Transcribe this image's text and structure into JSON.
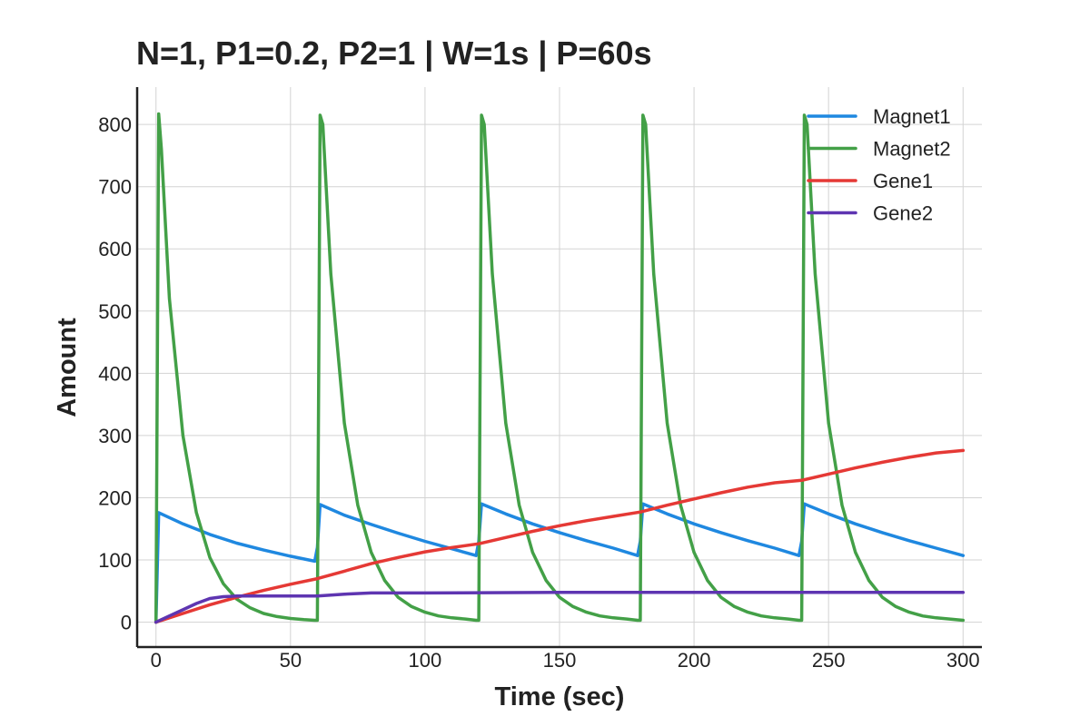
{
  "chart_data": {
    "type": "line",
    "title": "N=1, P1=0.2, P2=1 | W=1s | P=60s",
    "xlabel": "Time (sec)",
    "ylabel": "Amount",
    "xlim": [
      -7,
      307
    ],
    "ylim": [
      -40,
      860
    ],
    "xticks": [
      0,
      50,
      100,
      150,
      200,
      250,
      300
    ],
    "yticks": [
      0,
      100,
      200,
      300,
      400,
      500,
      600,
      700,
      800
    ],
    "grid": true,
    "legend_position": "top-right",
    "series": [
      {
        "name": "Magnet1",
        "color": "#1f88e0",
        "points": [
          [
            0,
            0
          ],
          [
            1,
            176
          ],
          [
            10,
            158
          ],
          [
            20,
            141
          ],
          [
            30,
            127
          ],
          [
            40,
            116
          ],
          [
            50,
            106
          ],
          [
            59,
            98
          ],
          [
            60,
            120
          ],
          [
            61,
            189
          ],
          [
            70,
            172
          ],
          [
            80,
            157
          ],
          [
            90,
            143
          ],
          [
            100,
            130
          ],
          [
            110,
            118
          ],
          [
            119,
            107
          ],
          [
            120,
            130
          ],
          [
            121,
            190
          ],
          [
            130,
            174
          ],
          [
            140,
            158
          ],
          [
            150,
            144
          ],
          [
            160,
            131
          ],
          [
            170,
            119
          ],
          [
            179,
            107
          ],
          [
            180,
            130
          ],
          [
            181,
            190
          ],
          [
            190,
            174
          ],
          [
            200,
            158
          ],
          [
            210,
            144
          ],
          [
            220,
            131
          ],
          [
            230,
            119
          ],
          [
            239,
            107
          ],
          [
            240,
            130
          ],
          [
            241,
            190
          ],
          [
            250,
            174
          ],
          [
            260,
            158
          ],
          [
            270,
            144
          ],
          [
            280,
            131
          ],
          [
            290,
            119
          ],
          [
            300,
            107
          ]
        ]
      },
      {
        "name": "Magnet2",
        "color": "#43a047",
        "points": [
          [
            0,
            0
          ],
          [
            1,
            817
          ],
          [
            2,
            760
          ],
          [
            5,
            520
          ],
          [
            10,
            300
          ],
          [
            15,
            176
          ],
          [
            20,
            104
          ],
          [
            25,
            62
          ],
          [
            30,
            37
          ],
          [
            35,
            23
          ],
          [
            40,
            14
          ],
          [
            45,
            9
          ],
          [
            50,
            6
          ],
          [
            55,
            4
          ],
          [
            59,
            3
          ],
          [
            60,
            3
          ],
          [
            61,
            815
          ],
          [
            62,
            800
          ],
          [
            65,
            560
          ],
          [
            70,
            320
          ],
          [
            75,
            188
          ],
          [
            80,
            112
          ],
          [
            85,
            67
          ],
          [
            90,
            40
          ],
          [
            95,
            25
          ],
          [
            100,
            16
          ],
          [
            105,
            10
          ],
          [
            110,
            7
          ],
          [
            115,
            5
          ],
          [
            119,
            3
          ],
          [
            120,
            3
          ],
          [
            121,
            815
          ],
          [
            122,
            800
          ],
          [
            125,
            560
          ],
          [
            130,
            320
          ],
          [
            135,
            188
          ],
          [
            140,
            112
          ],
          [
            145,
            67
          ],
          [
            150,
            40
          ],
          [
            155,
            25
          ],
          [
            160,
            16
          ],
          [
            165,
            10
          ],
          [
            170,
            7
          ],
          [
            175,
            5
          ],
          [
            179,
            3
          ],
          [
            180,
            3
          ],
          [
            181,
            815
          ],
          [
            182,
            800
          ],
          [
            185,
            560
          ],
          [
            190,
            320
          ],
          [
            195,
            188
          ],
          [
            200,
            112
          ],
          [
            205,
            67
          ],
          [
            210,
            40
          ],
          [
            215,
            25
          ],
          [
            220,
            16
          ],
          [
            225,
            10
          ],
          [
            230,
            7
          ],
          [
            235,
            5
          ],
          [
            239,
            3
          ],
          [
            240,
            3
          ],
          [
            241,
            815
          ],
          [
            242,
            800
          ],
          [
            245,
            560
          ],
          [
            250,
            320
          ],
          [
            255,
            188
          ],
          [
            260,
            112
          ],
          [
            265,
            67
          ],
          [
            270,
            40
          ],
          [
            275,
            25
          ],
          [
            280,
            16
          ],
          [
            285,
            10
          ],
          [
            290,
            7
          ],
          [
            295,
            5
          ],
          [
            300,
            3
          ]
        ]
      },
      {
        "name": "Gene1",
        "color": "#e53935",
        "points": [
          [
            0,
            0
          ],
          [
            10,
            14
          ],
          [
            20,
            28
          ],
          [
            30,
            40
          ],
          [
            40,
            51
          ],
          [
            50,
            61
          ],
          [
            60,
            70
          ],
          [
            70,
            82
          ],
          [
            80,
            94
          ],
          [
            90,
            104
          ],
          [
            100,
            113
          ],
          [
            110,
            120
          ],
          [
            120,
            126
          ],
          [
            130,
            136
          ],
          [
            140,
            146
          ],
          [
            150,
            155
          ],
          [
            160,
            163
          ],
          [
            170,
            170
          ],
          [
            180,
            177
          ],
          [
            190,
            188
          ],
          [
            200,
            198
          ],
          [
            210,
            208
          ],
          [
            220,
            217
          ],
          [
            230,
            224
          ],
          [
            240,
            228
          ],
          [
            250,
            238
          ],
          [
            260,
            248
          ],
          [
            270,
            257
          ],
          [
            280,
            265
          ],
          [
            290,
            272
          ],
          [
            300,
            276
          ]
        ]
      },
      {
        "name": "Gene2",
        "color": "#5e35b1",
        "points": [
          [
            0,
            0
          ],
          [
            5,
            10
          ],
          [
            10,
            20
          ],
          [
            15,
            30
          ],
          [
            20,
            38
          ],
          [
            25,
            41
          ],
          [
            30,
            42
          ],
          [
            40,
            42
          ],
          [
            50,
            42
          ],
          [
            60,
            42
          ],
          [
            70,
            45
          ],
          [
            80,
            47
          ],
          [
            100,
            47
          ],
          [
            150,
            48
          ],
          [
            200,
            48
          ],
          [
            250,
            48
          ],
          [
            300,
            48
          ]
        ]
      }
    ]
  }
}
